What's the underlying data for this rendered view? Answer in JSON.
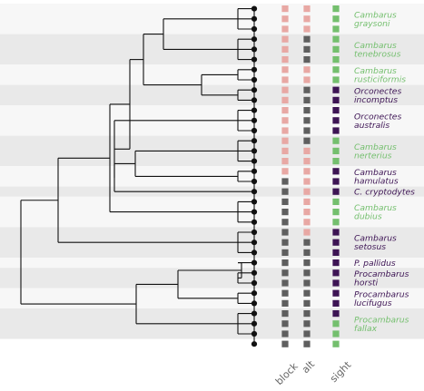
{
  "colors": {
    "band_light": "#f7f7f7",
    "band_dark": "#e9e9e9",
    "tree": "#111111",
    "node": "#111111",
    "pink": "#e8a8a4",
    "gray": "#5f5f5f",
    "green": "#74bf6e",
    "purple": "#3d1454"
  },
  "columns": [
    {
      "key": "block",
      "label": "block"
    },
    {
      "key": "alt",
      "label": "alt"
    },
    {
      "key": "sight",
      "label": "sight"
    }
  ],
  "species": [
    {
      "line1": "Cambarus",
      "line2": "graysoni",
      "color": "green",
      "group": 0
    },
    {
      "line1": "Cambarus",
      "line2": "tenebrosus",
      "color": "green",
      "group": 1
    },
    {
      "line1": "Cambarus",
      "line2": "rusticiformis",
      "color": "green",
      "group": 2
    },
    {
      "line1": "Orconectes",
      "line2": "incomptus",
      "color": "purple",
      "group": 3
    },
    {
      "line1": "Orconectes",
      "line2": "australis",
      "color": "purple",
      "group": 4
    },
    {
      "line1": "Cambarus",
      "line2": "nerterius",
      "color": "green",
      "group": 5
    },
    {
      "line1": "Cambarus",
      "line2": "hamulatus",
      "color": "purple",
      "group": 6
    },
    {
      "line1": "C. cryptodytes",
      "line2": "",
      "color": "purple",
      "group": 7
    },
    {
      "line1": "Cambarus",
      "line2": "dubius",
      "color": "green",
      "group": 8
    },
    {
      "line1": "Cambarus",
      "line2": "setosus",
      "color": "purple",
      "group": 9
    },
    {
      "line1": "P. pallidus",
      "line2": "",
      "color": "purple",
      "group": 10
    },
    {
      "line1": "Procambarus",
      "line2": "horsti",
      "color": "purple",
      "group": 11
    },
    {
      "line1": "Procambarus",
      "line2": "lucifugus",
      "color": "purple",
      "group": 12
    },
    {
      "line1": "Procambarus",
      "line2": "fallax",
      "color": "green",
      "group": 13
    }
  ],
  "leaf_groups": [
    3,
    3,
    2,
    2,
    3,
    3,
    2,
    1,
    3,
    3,
    1,
    2,
    2,
    3
  ],
  "leaf_states": {
    "block": [
      "pink",
      "pink",
      "pink",
      "pink",
      "pink",
      "pink",
      "pink",
      "pink",
      "pink",
      "pink",
      "pink",
      "pink",
      "pink",
      "pink",
      "pink",
      "pink",
      "pink",
      "gray",
      "gray",
      "gray",
      "gray",
      "gray",
      "gray",
      "gray",
      "gray",
      "gray",
      "gray",
      "gray",
      "gray",
      "gray",
      "gray",
      "gray",
      "gray",
      "gray"
    ],
    "alt": [
      "pink",
      "pink",
      "pink",
      "gray",
      "gray",
      "gray",
      "pink",
      "pink",
      "gray",
      "gray",
      "gray",
      "gray",
      "gray",
      "gray",
      "pink",
      "pink",
      "pink",
      "pink",
      "pink",
      "pink",
      "pink",
      "pink",
      "pink",
      "gray",
      "gray",
      "gray",
      "gray",
      "gray",
      "gray",
      "gray",
      "gray",
      "gray",
      "gray",
      "gray"
    ],
    "sight": [
      "green",
      "green",
      "green",
      "green",
      "green",
      "green",
      "green",
      "green",
      "purple",
      "purple",
      "purple",
      "purple",
      "purple",
      "green",
      "green",
      "green",
      "purple",
      "purple",
      "purple",
      "green",
      "green",
      "green",
      "purple",
      "purple",
      "purple",
      "purple",
      "purple",
      "purple",
      "purple",
      "purple",
      "purple",
      "green",
      "green",
      "green"
    ]
  }
}
